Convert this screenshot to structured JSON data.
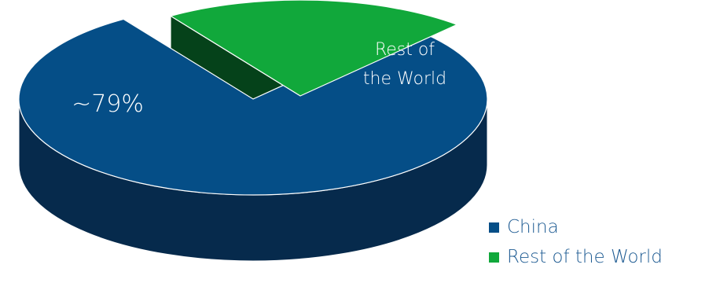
{
  "chart_data": {
    "type": "pie",
    "style": "3d-exploded",
    "categories": [
      "China",
      "Rest of the World"
    ],
    "values": [
      79,
      21
    ],
    "slice_labels": [
      "~79%",
      "Rest of\nthe World"
    ],
    "title": "",
    "legend_placement": "bottom-right",
    "colors": {
      "China": "#054E87",
      "Rest of the World": "#11A83B"
    },
    "side_colors": {
      "China": "#062A4C",
      "Rest of the World": "#05421A"
    }
  },
  "legend": {
    "items": [
      {
        "label": "China",
        "color": "#054E87",
        "text_color": "#1F5C93"
      },
      {
        "label": "Rest of the World",
        "color": "#11A83B",
        "text_color": "#1F5C93"
      }
    ]
  }
}
